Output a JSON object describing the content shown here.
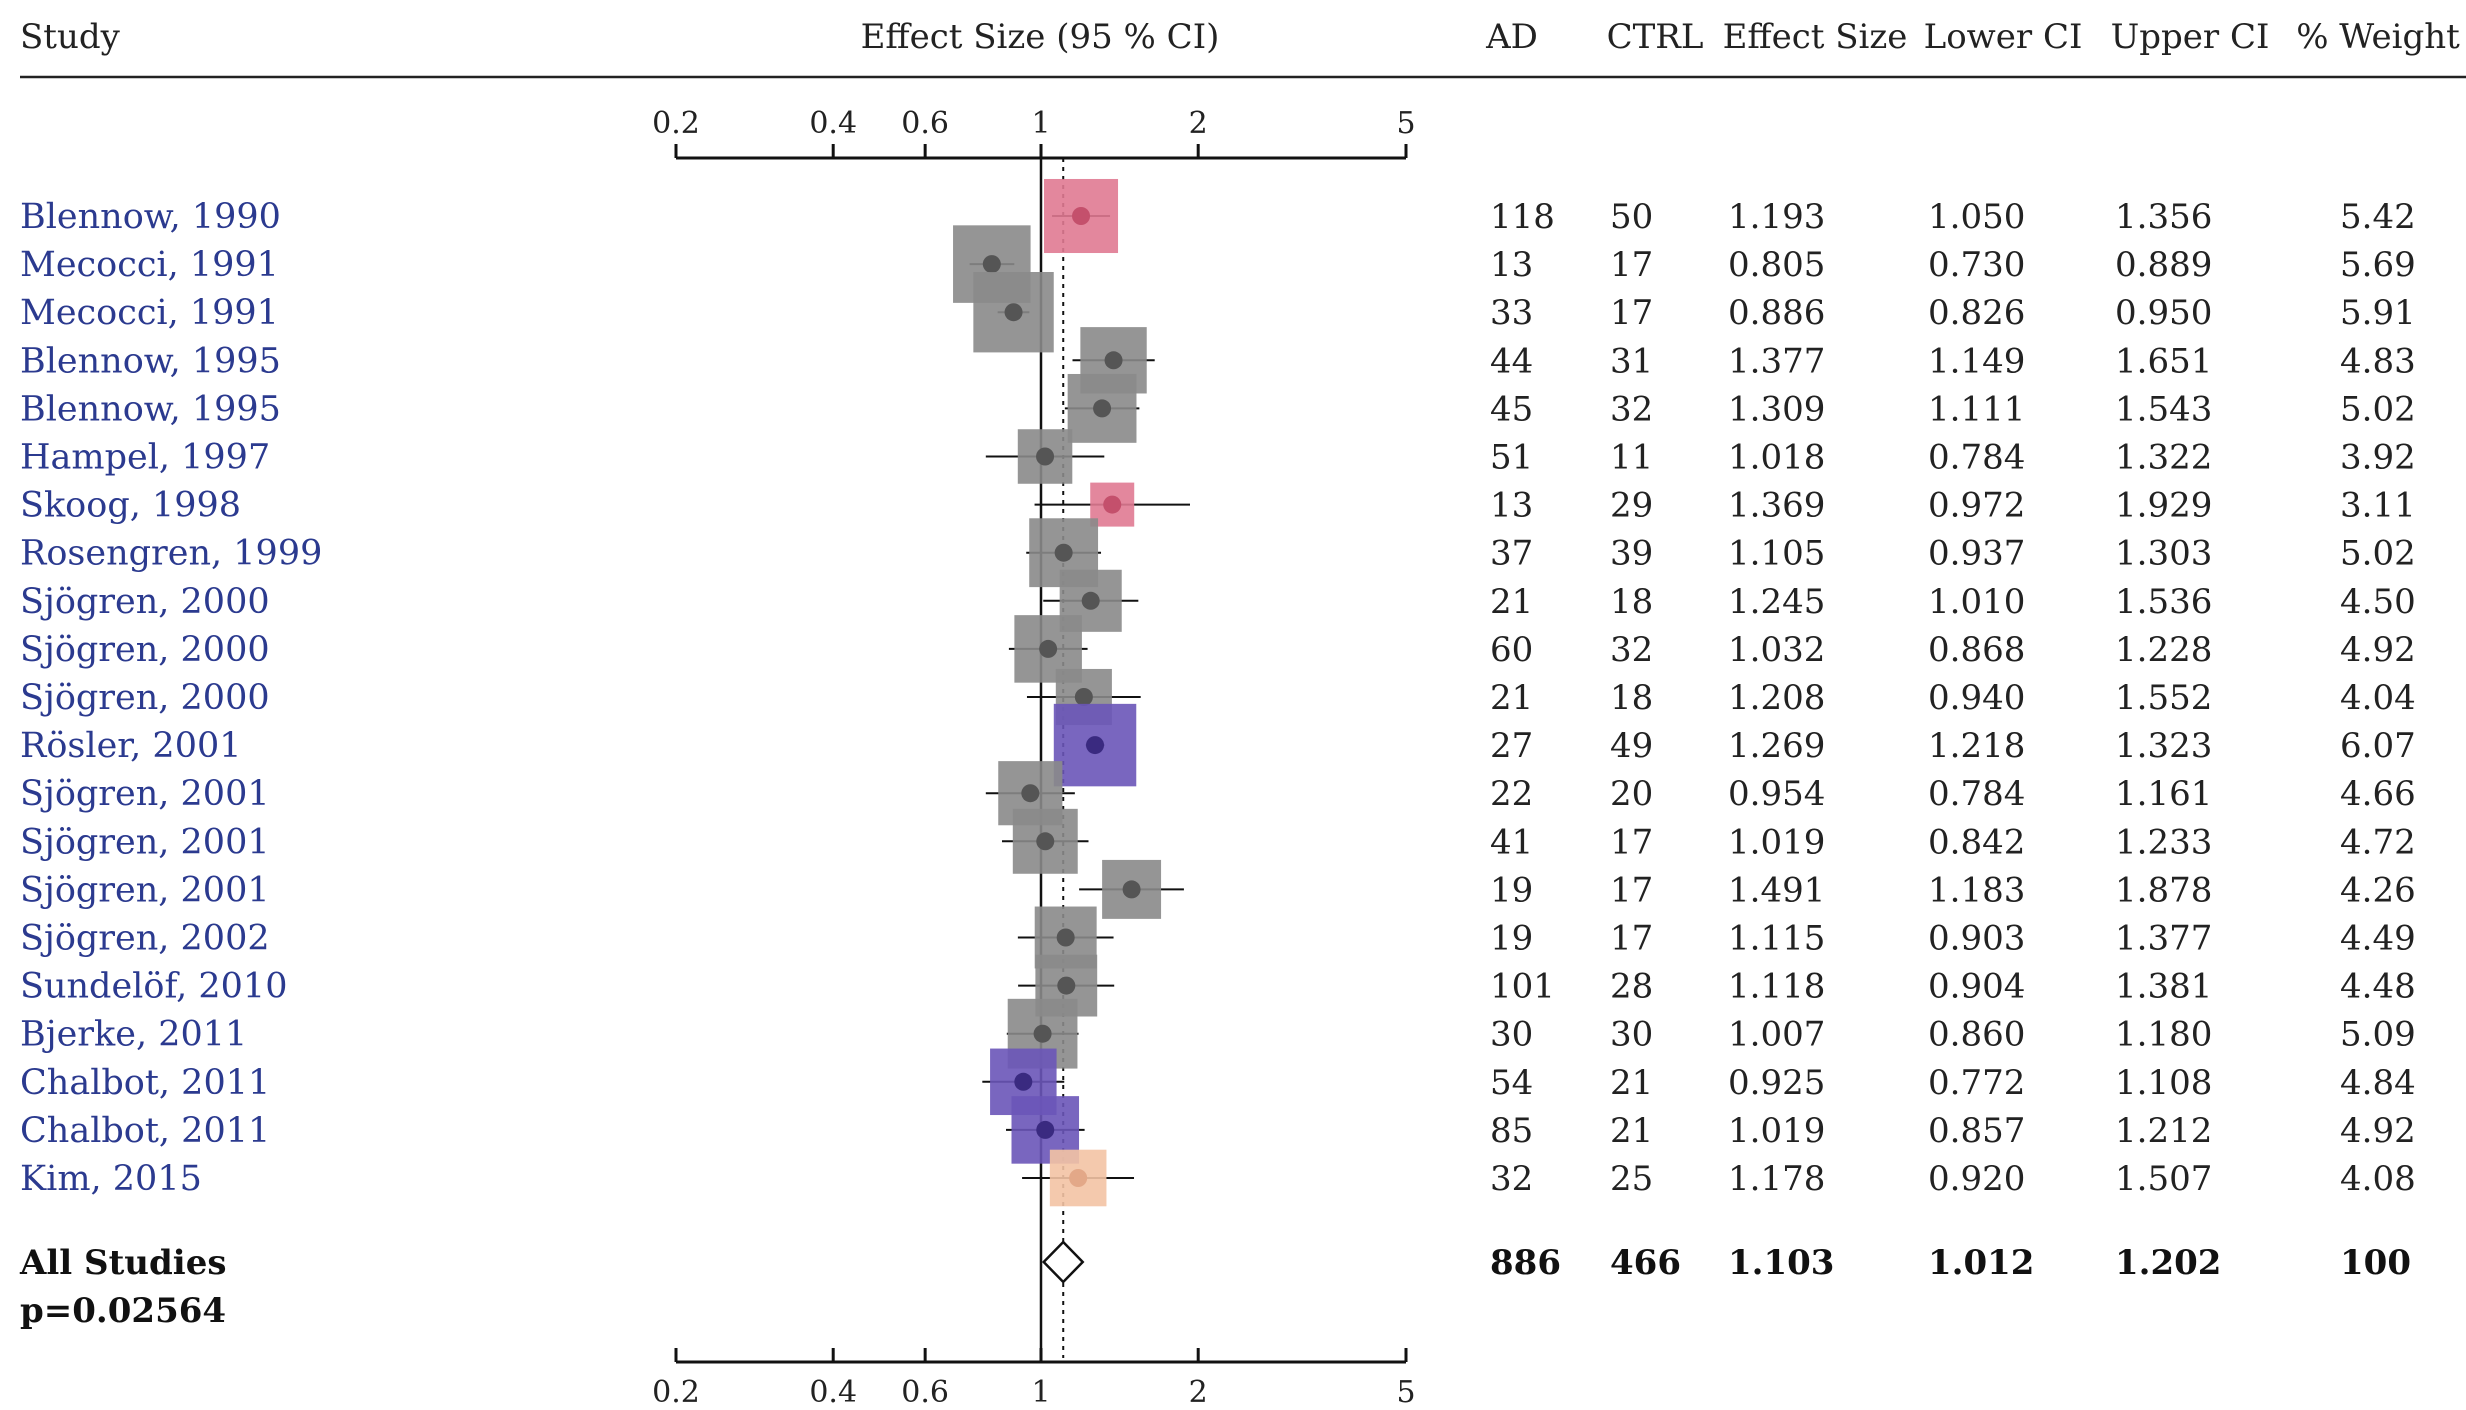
{
  "headers": {
    "study": "Study",
    "effect": "Effect Size (95 % CI)",
    "ad": "AD",
    "ctrl": "CTRL",
    "es": "Effect Size",
    "lower": "Lower CI",
    "upper": "Upper CI",
    "weight": "% Weight"
  },
  "summary_labels": {
    "all_studies": "All Studies",
    "p_value": "p=0.02564"
  },
  "colors": {
    "grey": "#8a8a8a",
    "pink": "#e07a92",
    "purple": "#6a55b8",
    "peach": "#f3c3a4",
    "dot_grey": "#555555",
    "dot_pink": "#c4506c",
    "dot_purple": "#3a2a80",
    "dot_peach": "#e3a888",
    "study_text": "#2b3a8f"
  },
  "chart_data": {
    "type": "forest",
    "x_scale": "log",
    "ticks": [
      {
        "value": 0.2,
        "label": "0.2"
      },
      {
        "value": 0.4,
        "label": "0.4"
      },
      {
        "value": 0.6,
        "label": "0.6"
      },
      {
        "value": 1,
        "label": "1"
      },
      {
        "value": 2,
        "label": "2"
      },
      {
        "value": 5,
        "label": "5"
      }
    ],
    "xlim": [
      0.2,
      5
    ],
    "null_line": 1,
    "pooled_line": 1.103,
    "studies": [
      {
        "study": "Blennow, 1990",
        "ad": "118",
        "ctrl": "50",
        "es": "1.193",
        "lower": "1.050",
        "upper": "1.356",
        "weight": "5.42",
        "color": "pink"
      },
      {
        "study": "Mecocci, 1991",
        "ad": "13",
        "ctrl": "17",
        "es": "0.805",
        "lower": "0.730",
        "upper": "0.889",
        "weight": "5.69",
        "color": "grey"
      },
      {
        "study": "Mecocci, 1991",
        "ad": "33",
        "ctrl": "17",
        "es": "0.886",
        "lower": "0.826",
        "upper": "0.950",
        "weight": "5.91",
        "color": "grey"
      },
      {
        "study": "Blennow, 1995",
        "ad": "44",
        "ctrl": "31",
        "es": "1.377",
        "lower": "1.149",
        "upper": "1.651",
        "weight": "4.83",
        "color": "grey"
      },
      {
        "study": "Blennow, 1995",
        "ad": "45",
        "ctrl": "32",
        "es": "1.309",
        "lower": "1.111",
        "upper": "1.543",
        "weight": "5.02",
        "color": "grey"
      },
      {
        "study": "Hampel, 1997",
        "ad": "51",
        "ctrl": "11",
        "es": "1.018",
        "lower": "0.784",
        "upper": "1.322",
        "weight": "3.92",
        "color": "grey"
      },
      {
        "study": "Skoog, 1998",
        "ad": "13",
        "ctrl": "29",
        "es": "1.369",
        "lower": "0.972",
        "upper": "1.929",
        "weight": "3.11",
        "color": "pink"
      },
      {
        "study": "Rosengren, 1999",
        "ad": "37",
        "ctrl": "39",
        "es": "1.105",
        "lower": "0.937",
        "upper": "1.303",
        "weight": "5.02",
        "color": "grey"
      },
      {
        "study": "Sjögren, 2000",
        "ad": "21",
        "ctrl": "18",
        "es": "1.245",
        "lower": "1.010",
        "upper": "1.536",
        "weight": "4.50",
        "color": "grey"
      },
      {
        "study": "Sjögren, 2000",
        "ad": "60",
        "ctrl": "32",
        "es": "1.032",
        "lower": "0.868",
        "upper": "1.228",
        "weight": "4.92",
        "color": "grey"
      },
      {
        "study": "Sjögren, 2000",
        "ad": "21",
        "ctrl": "18",
        "es": "1.208",
        "lower": "0.940",
        "upper": "1.552",
        "weight": "4.04",
        "color": "grey"
      },
      {
        "study": "Rösler, 2001",
        "ad": "27",
        "ctrl": "49",
        "es": "1.269",
        "lower": "1.218",
        "upper": "1.323",
        "weight": "6.07",
        "color": "purple"
      },
      {
        "study": "Sjögren, 2001",
        "ad": "22",
        "ctrl": "20",
        "es": "0.954",
        "lower": "0.784",
        "upper": "1.161",
        "weight": "4.66",
        "color": "grey"
      },
      {
        "study": "Sjögren, 2001",
        "ad": "41",
        "ctrl": "17",
        "es": "1.019",
        "lower": "0.842",
        "upper": "1.233",
        "weight": "4.72",
        "color": "grey"
      },
      {
        "study": "Sjögren, 2001",
        "ad": "19",
        "ctrl": "17",
        "es": "1.491",
        "lower": "1.183",
        "upper": "1.878",
        "weight": "4.26",
        "color": "grey"
      },
      {
        "study": "Sjögren, 2002",
        "ad": "19",
        "ctrl": "17",
        "es": "1.115",
        "lower": "0.903",
        "upper": "1.377",
        "weight": "4.49",
        "color": "grey"
      },
      {
        "study": "Sundelöf, 2010",
        "ad": "101",
        "ctrl": "28",
        "es": "1.118",
        "lower": "0.904",
        "upper": "1.381",
        "weight": "4.48",
        "color": "grey"
      },
      {
        "study": "Bjerke, 2011",
        "ad": "30",
        "ctrl": "30",
        "es": "1.007",
        "lower": "0.860",
        "upper": "1.180",
        "weight": "5.09",
        "color": "grey"
      },
      {
        "study": "Chalbot, 2011",
        "ad": "54",
        "ctrl": "21",
        "es": "0.925",
        "lower": "0.772",
        "upper": "1.108",
        "weight": "4.84",
        "color": "purple"
      },
      {
        "study": "Chalbot, 2011",
        "ad": "85",
        "ctrl": "21",
        "es": "1.019",
        "lower": "0.857",
        "upper": "1.212",
        "weight": "4.92",
        "color": "purple"
      },
      {
        "study": "Kim, 2015",
        "ad": "32",
        "ctrl": "25",
        "es": "1.178",
        "lower": "0.920",
        "upper": "1.507",
        "weight": "4.08",
        "color": "peach"
      }
    ],
    "pooled": {
      "ad": "886",
      "ctrl": "466",
      "es": "1.103",
      "lower": "1.012",
      "upper": "1.202",
      "weight": "100"
    }
  }
}
